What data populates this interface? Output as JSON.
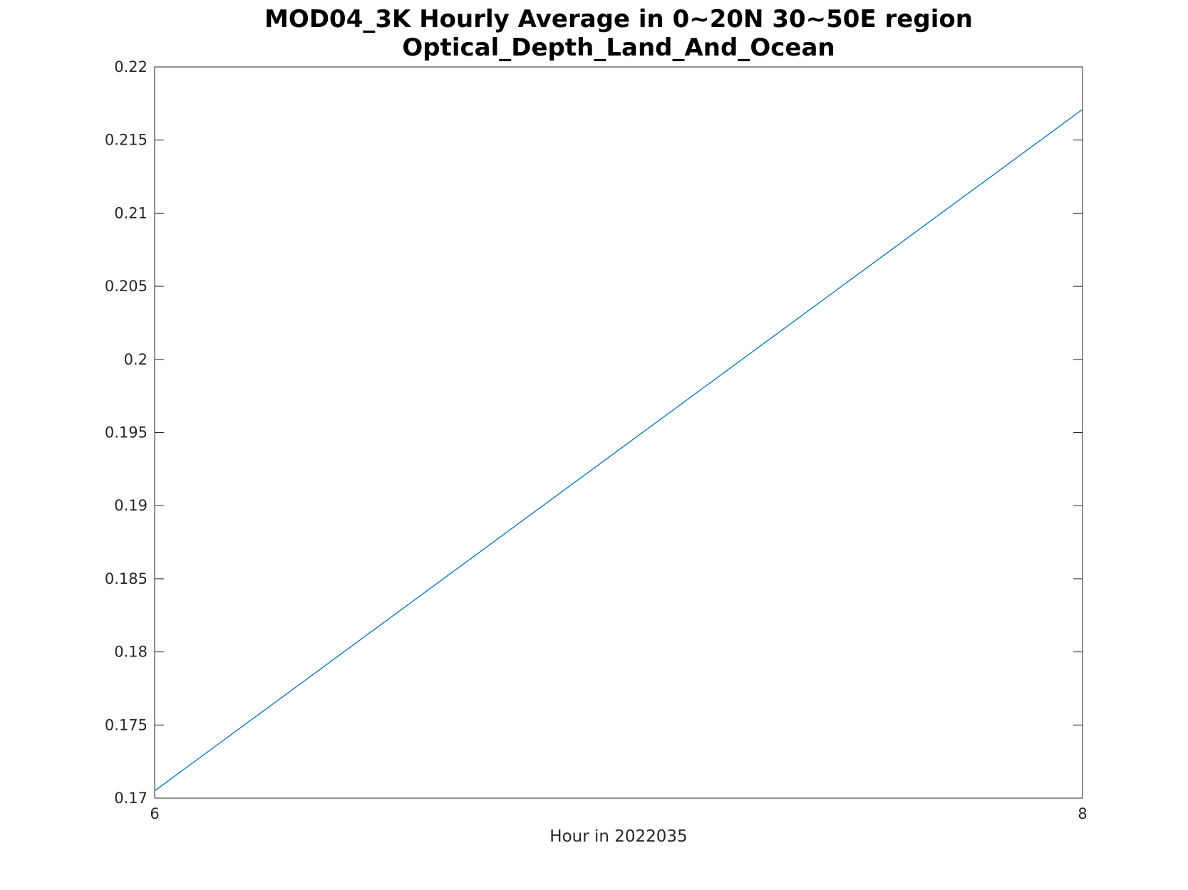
{
  "chart_data": {
    "type": "line",
    "title": "MOD04_3K Hourly Average in 0~20N 30~50E region",
    "subtitle": "Optical_Depth_Land_And_Ocean",
    "xlabel": "Hour in 2022035",
    "ylabel": "",
    "x": [
      6,
      8
    ],
    "xlim": [
      6,
      8
    ],
    "ylim": [
      0.17,
      0.22
    ],
    "x_ticks": [
      "6",
      "8"
    ],
    "y_ticks": [
      "0.17",
      "0.175",
      "0.18",
      "0.185",
      "0.19",
      "0.195",
      "0.2",
      "0.205",
      "0.21",
      "0.215",
      "0.22"
    ],
    "series": [
      {
        "values": [
          0.1705,
          0.2171
        ],
        "color": "#0072bd"
      }
    ],
    "grid": false,
    "legend": "none"
  }
}
